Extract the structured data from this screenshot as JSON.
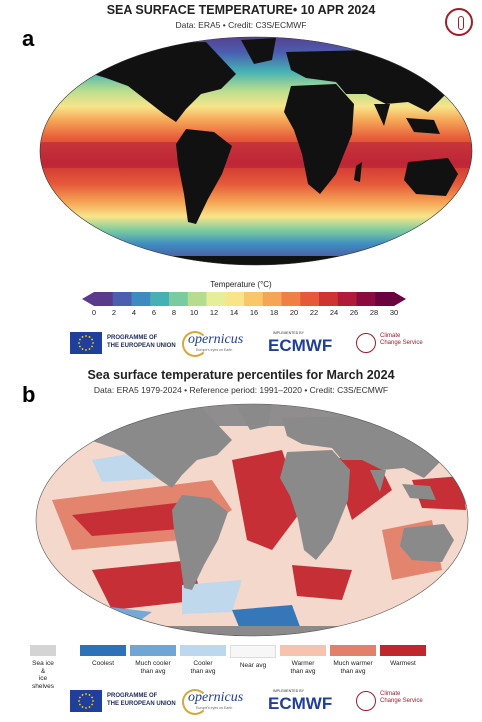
{
  "panel_a": {
    "letter": "a",
    "title": "SEA SURFACE TEMPERATURE• 10 APR 2024",
    "subtitle": "Data: ERA5 • Credit: C3S/ECMWF",
    "colorbar": {
      "label": "Temperature (°C)",
      "ticks": [
        "0",
        "2",
        "4",
        "6",
        "8",
        "10",
        "12",
        "14",
        "16",
        "18",
        "20",
        "22",
        "24",
        "26",
        "28",
        "30"
      ],
      "colors": [
        "#5b3a8c",
        "#4a5fb0",
        "#3d8bc1",
        "#46b1b4",
        "#7bcba0",
        "#b6dd8f",
        "#e6ee9a",
        "#f8e58a",
        "#f9c66a",
        "#f6a556",
        "#f07f45",
        "#e5593a",
        "#cf3433",
        "#b01b3a",
        "#8b0a40",
        "#6a0240"
      ]
    },
    "logos": {
      "programme": "PROGRAMME OF\nTHE EUROPEAN UNION",
      "copernicus": "opernicus",
      "copernicus_tag": "Europe's eyes on Earth",
      "ecmwf_small": "IMPLEMENTED BY",
      "ecmwf": "ECMWF",
      "ccs": "Climate\nChange Service"
    }
  },
  "panel_b": {
    "letter": "b",
    "title": "Sea surface temperature percentiles for March 2024",
    "subtitle": "Data: ERA5 1979-2024 • Reference period: 1991–2020 • Credit: C3S/ECMWF",
    "legend": [
      {
        "label": "Sea ice &\nice shelves",
        "color": "#d4d4d4"
      },
      {
        "label": "Coolest",
        "color": "#2b72b8"
      },
      {
        "label": "Much cooler\nthan avg",
        "color": "#6fa6d6"
      },
      {
        "label": "Cooler\nthan avg",
        "color": "#bcd8ee"
      },
      {
        "label": "Near avg",
        "color": "#f7f7f7"
      },
      {
        "label": "Warmer\nthan avg",
        "color": "#f6c3ae"
      },
      {
        "label": "Much warmer\nthan avg",
        "color": "#e2806a"
      },
      {
        "label": "Warmest",
        "color": "#c2262d"
      }
    ],
    "logos": {
      "programme": "PROGRAMME OF\nTHE EUROPEAN UNION",
      "copernicus": "opernicus",
      "copernicus_tag": "Europe's eyes on Earth",
      "ecmwf_small": "IMPLEMENTED BY",
      "ecmwf": "ECMWF",
      "ccs": "Climate\nChange Service"
    }
  },
  "colors": {
    "land_a": "#111111",
    "land_b": "#8a8a8a",
    "ocean_b_base": "#f4d8cc",
    "brand_red": "#a01d2c",
    "brand_blue": "#1f3f9a"
  }
}
